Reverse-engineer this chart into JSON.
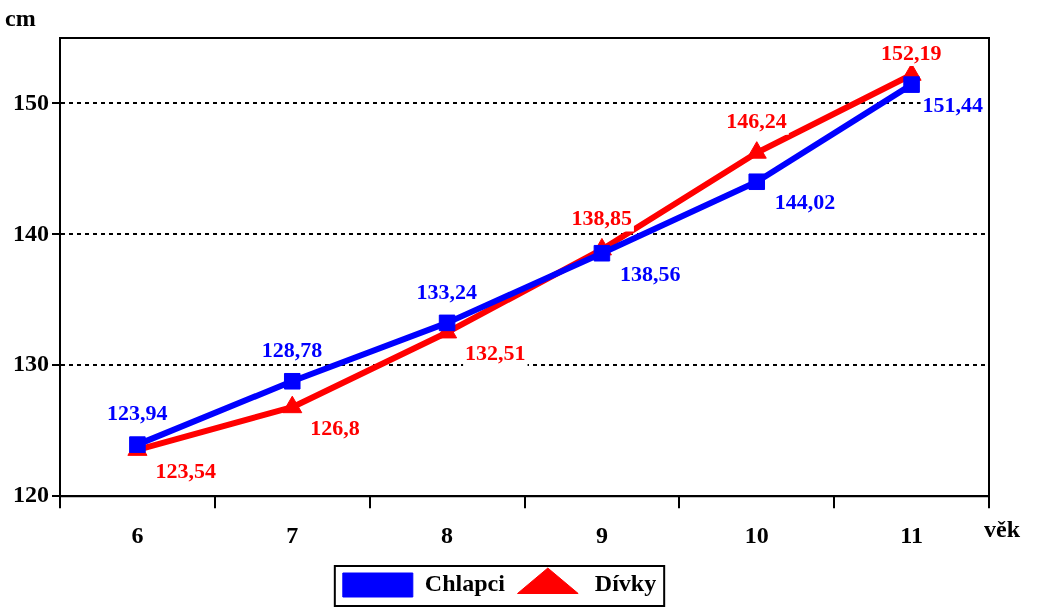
{
  "chart_data": {
    "type": "line",
    "xlabel": "věk",
    "ylabel": "cm",
    "categories": [
      "6",
      "7",
      "8",
      "9",
      "10",
      "11"
    ],
    "ylim": [
      120,
      155
    ],
    "yticks": [
      120,
      130,
      140,
      150
    ],
    "grid": "y",
    "legend": "bottom",
    "line_style": "solid",
    "series": [
      {
        "name": "Chlapci",
        "color": "#0000ff",
        "marker": "square",
        "values": [
          123.94,
          128.78,
          133.24,
          138.56,
          144.02,
          151.44
        ],
        "value_labels": [
          "123,94",
          "128,78",
          "133,24",
          "138,56",
          "144,02",
          "151,44"
        ]
      },
      {
        "name": "Dívky",
        "color": "#ff0000",
        "marker": "triangle",
        "values": [
          123.54,
          126.8,
          132.51,
          138.85,
          146.24,
          152.19
        ],
        "value_labels": [
          "123,54",
          "126,8",
          "132,51",
          "138,85",
          "146,24",
          "152,19"
        ]
      }
    ]
  }
}
